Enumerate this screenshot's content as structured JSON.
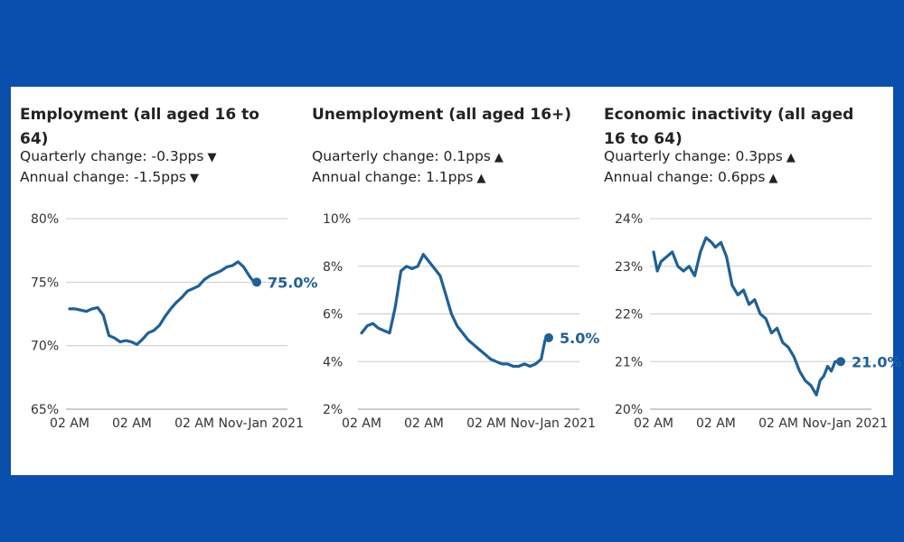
{
  "colors": {
    "page_background": "#0b4fad",
    "card_background": "#ffffff",
    "line": "#206095",
    "gridline": "#cccccc",
    "text": "#222222"
  },
  "panels": [
    {
      "title": "Employment (all aged 16 to 64)",
      "quarterly_change": "Quarterly change: -0.3pps",
      "quarterly_direction": "down",
      "quarterly_arrow": "▼",
      "annual_change": "Annual change: -1.5pps",
      "annual_direction": "down",
      "annual_arrow": "▼"
    },
    {
      "title": "Unemployment (all aged 16+)",
      "quarterly_change": "Quarterly change: 0.1pps",
      "quarterly_direction": "up",
      "quarterly_arrow": "▲",
      "annual_change": "Annual change: 1.1pps",
      "annual_direction": "up",
      "annual_arrow": "▲"
    },
    {
      "title": "Economic inactivity (all aged 16 to 64)",
      "quarterly_change": "Quarterly change: 0.3pps",
      "quarterly_direction": "up",
      "quarterly_arrow": "▲",
      "annual_change": "Annual change: 0.6pps",
      "annual_direction": "up",
      "annual_arrow": "▲"
    }
  ],
  "chart_data": [
    {
      "type": "line",
      "title": "Employment (all aged 16 to 64)",
      "yticks": [
        "80%",
        "75%",
        "70%",
        "65%"
      ],
      "ytick_values": [
        80,
        75,
        70,
        65
      ],
      "ylim": [
        65,
        80
      ],
      "xticks": [
        "02 AM",
        "02 AM",
        "02 AM",
        "Nov-Jan 2021"
      ],
      "xtick_positions": [
        0,
        0.333,
        0.667,
        1.0
      ],
      "end_label": "75.0%",
      "end_value": 75.0,
      "grid": true,
      "x": [
        0,
        0.03,
        0.06,
        0.09,
        0.12,
        0.15,
        0.18,
        0.21,
        0.24,
        0.27,
        0.3,
        0.33,
        0.36,
        0.39,
        0.42,
        0.45,
        0.48,
        0.51,
        0.54,
        0.57,
        0.6,
        0.63,
        0.66,
        0.69,
        0.72,
        0.75,
        0.78,
        0.81,
        0.84,
        0.87,
        0.9,
        0.93,
        0.96,
        0.98,
        1.0
      ],
      "values": [
        72.9,
        72.9,
        72.8,
        72.7,
        72.9,
        73.0,
        72.4,
        70.8,
        70.6,
        70.3,
        70.4,
        70.3,
        70.1,
        70.5,
        71.0,
        71.2,
        71.6,
        72.3,
        72.9,
        73.4,
        73.8,
        74.3,
        74.5,
        74.7,
        75.2,
        75.5,
        75.7,
        75.9,
        76.2,
        76.3,
        76.6,
        76.2,
        75.5,
        75.1,
        75.0
      ]
    },
    {
      "type": "line",
      "title": "Unemployment (all aged 16+)",
      "yticks": [
        "10%",
        "8%",
        "6%",
        "4%",
        "2%"
      ],
      "ytick_values": [
        10,
        8,
        6,
        4,
        2
      ],
      "ylim": [
        2,
        10
      ],
      "xticks": [
        "02 AM",
        "02 AM",
        "02 AM",
        "Nov-Jan 2021"
      ],
      "xtick_positions": [
        0,
        0.333,
        0.667,
        1.0
      ],
      "end_label": "5.0%",
      "end_value": 5.0,
      "grid": true,
      "x": [
        0,
        0.03,
        0.06,
        0.09,
        0.12,
        0.15,
        0.18,
        0.21,
        0.24,
        0.27,
        0.3,
        0.33,
        0.36,
        0.39,
        0.42,
        0.45,
        0.48,
        0.51,
        0.54,
        0.57,
        0.6,
        0.63,
        0.66,
        0.69,
        0.72,
        0.75,
        0.78,
        0.81,
        0.84,
        0.87,
        0.9,
        0.93,
        0.96,
        0.98,
        1.0
      ],
      "values": [
        5.2,
        5.5,
        5.6,
        5.4,
        5.3,
        5.2,
        6.3,
        7.8,
        8.0,
        7.9,
        8.0,
        8.5,
        8.2,
        7.9,
        7.6,
        6.8,
        6.0,
        5.5,
        5.2,
        4.9,
        4.7,
        4.5,
        4.3,
        4.1,
        4.0,
        3.9,
        3.9,
        3.8,
        3.8,
        3.9,
        3.8,
        3.9,
        4.1,
        4.9,
        5.0
      ]
    },
    {
      "type": "line",
      "title": "Economic inactivity (all aged 16 to 64)",
      "yticks": [
        "24%",
        "23%",
        "22%",
        "21%",
        "20%"
      ],
      "ytick_values": [
        24,
        23,
        22,
        21,
        20
      ],
      "ylim": [
        20,
        24
      ],
      "xticks": [
        "02 AM",
        "02 AM",
        "02 AM",
        "Nov-Jan 2021"
      ],
      "xtick_positions": [
        0,
        0.333,
        0.667,
        1.0
      ],
      "end_label": "21.0%",
      "end_value": 21.0,
      "grid": true,
      "x": [
        0,
        0.02,
        0.04,
        0.07,
        0.1,
        0.13,
        0.16,
        0.19,
        0.22,
        0.25,
        0.28,
        0.31,
        0.33,
        0.36,
        0.39,
        0.42,
        0.45,
        0.48,
        0.51,
        0.54,
        0.57,
        0.6,
        0.63,
        0.66,
        0.69,
        0.72,
        0.75,
        0.78,
        0.81,
        0.84,
        0.87,
        0.89,
        0.91,
        0.93,
        0.95,
        0.97,
        1.0
      ],
      "values": [
        23.3,
        22.9,
        23.1,
        23.2,
        23.3,
        23.0,
        22.9,
        23.0,
        22.8,
        23.3,
        23.6,
        23.5,
        23.4,
        23.5,
        23.2,
        22.6,
        22.4,
        22.5,
        22.2,
        22.3,
        22.0,
        21.9,
        21.6,
        21.7,
        21.4,
        21.3,
        21.1,
        20.8,
        20.6,
        20.5,
        20.3,
        20.6,
        20.7,
        20.9,
        20.8,
        21.0,
        21.0
      ]
    }
  ]
}
